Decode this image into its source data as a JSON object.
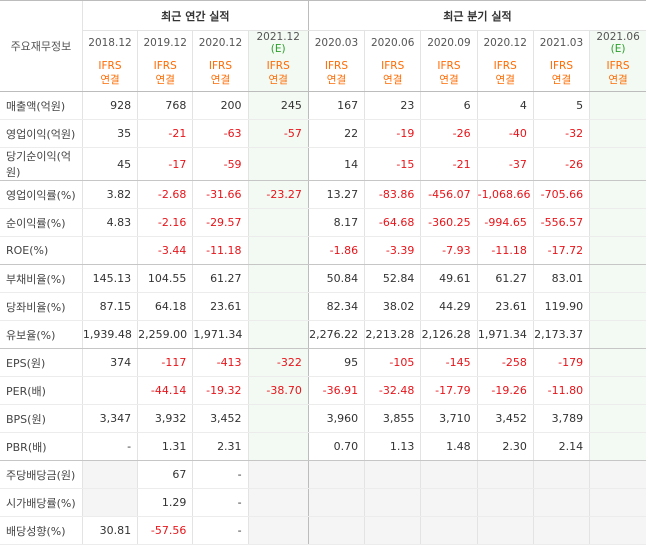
{
  "table": {
    "corner_label": "주요재무정보",
    "groups": [
      {
        "label": "최근 연간 실적",
        "span": 4
      },
      {
        "label": "최근 분기 실적",
        "span": 6
      }
    ],
    "periods": [
      {
        "label": "2018.12",
        "estimate": null
      },
      {
        "label": "2019.12",
        "estimate": null
      },
      {
        "label": "2020.12",
        "estimate": null
      },
      {
        "label": "2021.12",
        "estimate": "(E)"
      },
      {
        "label": "2020.03",
        "estimate": null
      },
      {
        "label": "2020.06",
        "estimate": null
      },
      {
        "label": "2020.09",
        "estimate": null
      },
      {
        "label": "2020.12",
        "estimate": null
      },
      {
        "label": "2021.03",
        "estimate": null
      },
      {
        "label": "2021.06",
        "estimate": "(E)"
      }
    ],
    "standard": "IFRS",
    "basis": "연결",
    "rows": [
      {
        "label": "매출액(억원)",
        "values": [
          "928",
          "768",
          "200",
          "245",
          "167",
          "23",
          "6",
          "4",
          "5",
          null
        ]
      },
      {
        "label": "영업이익(억원)",
        "values": [
          "35",
          "-21",
          "-63",
          "-57",
          "22",
          "-19",
          "-26",
          "-40",
          "-32",
          null
        ]
      },
      {
        "label": "당기순이익(억원)",
        "values": [
          "45",
          "-17",
          "-59",
          null,
          "14",
          "-15",
          "-21",
          "-37",
          "-26",
          null
        ]
      },
      {
        "label": "영업이익률(%)",
        "values": [
          "3.82",
          "-2.68",
          "-31.66",
          "-23.27",
          "13.27",
          "-83.86",
          "-456.07",
          "-1,068.66",
          "-705.66",
          null
        ]
      },
      {
        "label": "순이익률(%)",
        "values": [
          "4.83",
          "-2.16",
          "-29.57",
          null,
          "8.17",
          "-64.68",
          "-360.25",
          "-994.65",
          "-556.57",
          null
        ]
      },
      {
        "label": "ROE(%)",
        "values": [
          null,
          "-3.44",
          "-11.18",
          null,
          "-1.86",
          "-3.39",
          "-7.93",
          "-11.18",
          "-17.72",
          null
        ]
      },
      {
        "label": "부채비율(%)",
        "values": [
          "145.13",
          "104.55",
          "61.27",
          null,
          "50.84",
          "52.84",
          "49.61",
          "61.27",
          "83.01",
          null
        ]
      },
      {
        "label": "당좌비율(%)",
        "values": [
          "87.15",
          "64.18",
          "23.61",
          null,
          "82.34",
          "38.02",
          "44.29",
          "23.61",
          "119.90",
          null
        ]
      },
      {
        "label": "유보율(%)",
        "values": [
          "1,939.48",
          "2,259.00",
          "1,971.34",
          null,
          "2,276.22",
          "2,213.28",
          "2,126.28",
          "1,971.34",
          "2,173.37",
          null
        ]
      },
      {
        "label": "EPS(원)",
        "values": [
          "374",
          "-117",
          "-413",
          "-322",
          "95",
          "-105",
          "-145",
          "-258",
          "-179",
          null
        ]
      },
      {
        "label": "PER(배)",
        "values": [
          null,
          "-44.14",
          "-19.32",
          "-38.70",
          "-36.91",
          "-32.48",
          "-17.79",
          "-19.26",
          "-11.80",
          null
        ]
      },
      {
        "label": "BPS(원)",
        "values": [
          "3,347",
          "3,932",
          "3,452",
          null,
          "3,960",
          "3,855",
          "3,710",
          "3,452",
          "3,789",
          null
        ]
      },
      {
        "label": "PBR(배)",
        "values": [
          "-",
          "1.31",
          "2.31",
          null,
          "0.70",
          "1.13",
          "1.48",
          "2.30",
          "2.14",
          null
        ]
      },
      {
        "label": "주당배당금(원)",
        "values": [
          null,
          "67",
          "-",
          null,
          null,
          null,
          null,
          null,
          null,
          null
        ]
      },
      {
        "label": "시가배당률(%)",
        "values": [
          null,
          "1.29",
          "-",
          null,
          null,
          null,
          null,
          null,
          null,
          null
        ]
      },
      {
        "label": "배당성향(%)",
        "values": [
          "30.81",
          "-57.56",
          "-",
          null,
          null,
          null,
          null,
          null,
          null,
          null
        ]
      }
    ]
  }
}
